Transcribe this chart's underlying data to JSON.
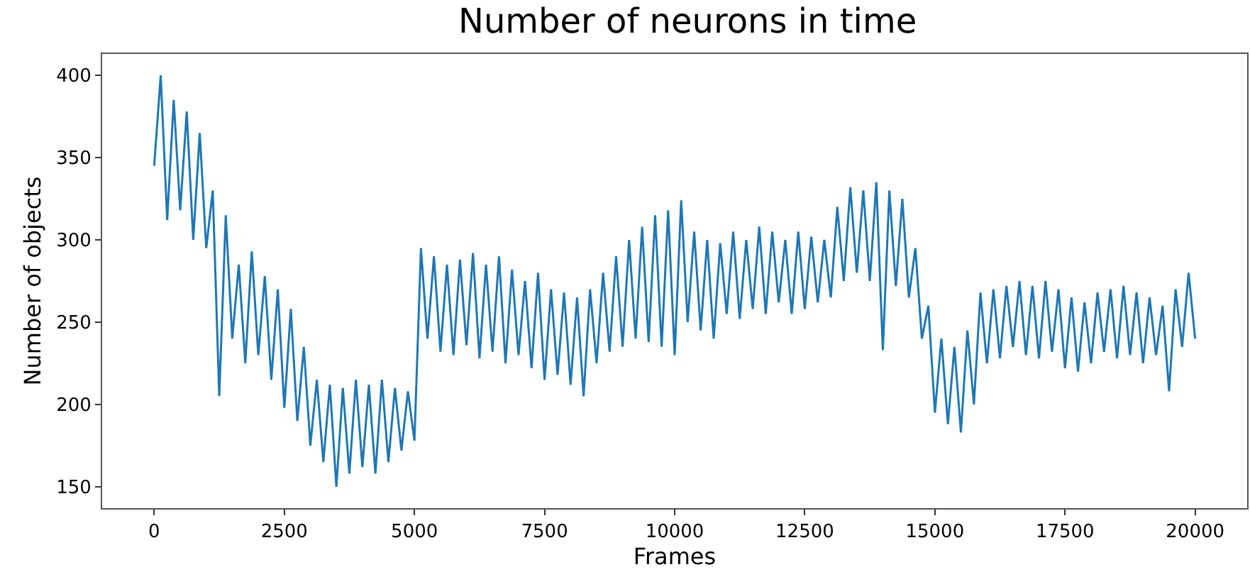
{
  "chart_data": {
    "type": "line",
    "title": "Number of neurons in time",
    "xlabel": "Frames",
    "ylabel": "Number of objects",
    "x": [
      0,
      125,
      250,
      375,
      500,
      625,
      750,
      875,
      1000,
      1125,
      1250,
      1375,
      1500,
      1625,
      1750,
      1875,
      2000,
      2125,
      2250,
      2375,
      2500,
      2625,
      2750,
      2875,
      3000,
      3125,
      3250,
      3375,
      3500,
      3625,
      3750,
      3875,
      4000,
      4125,
      4250,
      4375,
      4500,
      4625,
      4750,
      4875,
      5000,
      5125,
      5250,
      5375,
      5500,
      5625,
      5750,
      5875,
      6000,
      6125,
      6250,
      6375,
      6500,
      6625,
      6750,
      6875,
      7000,
      7125,
      7250,
      7375,
      7500,
      7625,
      7750,
      7875,
      8000,
      8125,
      8250,
      8375,
      8500,
      8625,
      8750,
      8875,
      9000,
      9125,
      9250,
      9375,
      9500,
      9625,
      9750,
      9875,
      10000,
      10125,
      10250,
      10375,
      10500,
      10625,
      10750,
      10875,
      11000,
      11125,
      11250,
      11375,
      11500,
      11625,
      11750,
      11875,
      12000,
      12125,
      12250,
      12375,
      12500,
      12625,
      12750,
      12875,
      13000,
      13125,
      13250,
      13375,
      13500,
      13625,
      13750,
      13875,
      14000,
      14125,
      14250,
      14375,
      14500,
      14625,
      14750,
      14875,
      15000,
      15125,
      15250,
      15375,
      15500,
      15625,
      15750,
      15875,
      16000,
      16125,
      16250,
      16375,
      16500,
      16625,
      16750,
      16875,
      17000,
      17125,
      17250,
      17375,
      17500,
      17625,
      17750,
      17875,
      18000,
      18125,
      18250,
      18375,
      18500,
      18625,
      18750,
      18875,
      19000,
      19125,
      19250,
      19375,
      19500,
      19625,
      19750,
      19875,
      20000
    ],
    "series": [
      {
        "color": "#1f77b4",
        "values": [
          345,
          400,
          312,
          385,
          318,
          378,
          300,
          365,
          295,
          330,
          205,
          315,
          240,
          285,
          225,
          293,
          230,
          278,
          215,
          270,
          198,
          258,
          190,
          235,
          175,
          215,
          165,
          212,
          150,
          210,
          158,
          215,
          162,
          212,
          158,
          215,
          165,
          210,
          172,
          208,
          178,
          295,
          240,
          290,
          232,
          285,
          230,
          288,
          236,
          292,
          228,
          285,
          232,
          290,
          225,
          282,
          230,
          275,
          222,
          280,
          215,
          270,
          218,
          268,
          212,
          265,
          205,
          270,
          225,
          280,
          232,
          290,
          235,
          300,
          240,
          308,
          238,
          315,
          235,
          318,
          230,
          324,
          250,
          305,
          245,
          300,
          240,
          298,
          255,
          305,
          252,
          300,
          258,
          308,
          255,
          305,
          262,
          300,
          255,
          305,
          258,
          302,
          262,
          300,
          265,
          320,
          275,
          332,
          280,
          330,
          275,
          335,
          233,
          330,
          272,
          325,
          265,
          295,
          240,
          260,
          195,
          240,
          188,
          235,
          183,
          245,
          200,
          268,
          225,
          270,
          228,
          272,
          235,
          275,
          230,
          272,
          228,
          275,
          232,
          270,
          222,
          265,
          220,
          262,
          225,
          268,
          232,
          270,
          228,
          272,
          230,
          268,
          225,
          265,
          230,
          260,
          208,
          270,
          235,
          280,
          240
        ]
      }
    ],
    "xlim": [
      -1000,
      21000
    ],
    "ylim": [
      137,
      413
    ],
    "xticks": [
      0,
      2500,
      5000,
      7500,
      10000,
      12500,
      15000,
      17500,
      20000
    ],
    "yticks": [
      150,
      200,
      250,
      300,
      350,
      400
    ],
    "grid": false,
    "marker": "none",
    "line_style": "solid"
  }
}
